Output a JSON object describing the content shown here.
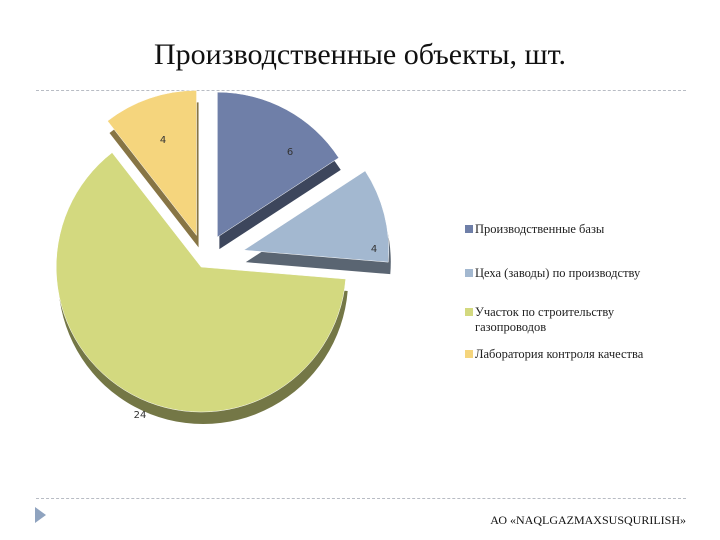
{
  "slide": {
    "title": "Производственные объекты, шт.",
    "footer": "АО «NAQLGAZMAXSUSQURILISH»"
  },
  "chart_data": {
    "type": "pie",
    "title": "Производственные объекты, шт.",
    "exploded": true,
    "style": "3d",
    "legend_position": "right",
    "categories": [
      "Производственные базы",
      "Цеха (заводы) по производству",
      "Участок по строительству газопроводов",
      "Лаборатория контроля качества"
    ],
    "values": [
      6,
      4,
      24,
      4
    ],
    "data_labels": [
      "6",
      "4",
      "24",
      "4"
    ],
    "colors": [
      "#6f7fa8",
      "#a3b8d0",
      "#d3d97f",
      "#f5d57d"
    ]
  }
}
